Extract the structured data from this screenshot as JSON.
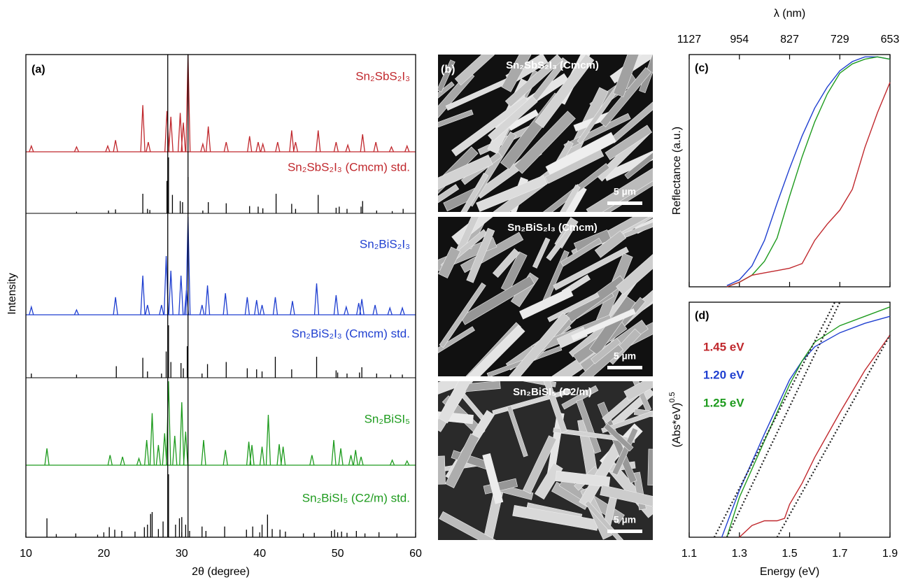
{
  "chart_data": [
    {
      "type": "xrd",
      "panel_label": "(a)",
      "xlabel": "2θ (degree)",
      "ylabel": "Intensity",
      "xlim": [
        10,
        60
      ],
      "xticks": [
        10,
        20,
        30,
        40,
        50,
        60
      ],
      "ylim": [
        0,
        100
      ],
      "reference_lines": [
        28.2,
        30.8
      ],
      "series": [
        {
          "name": "Sn₂SbS₂I₃",
          "kind": "measured",
          "color": "#c0282d",
          "x": [
            10.7,
            16.5,
            20.5,
            21.5,
            25.0,
            25.7,
            28.1,
            28.6,
            29.8,
            30.2,
            30.8,
            32.7,
            33.4,
            35.7,
            38.7,
            39.8,
            40.4,
            42.3,
            44.1,
            44.6,
            47.5,
            49.8,
            51.3,
            53.2,
            54.9,
            56.9,
            58.9
          ],
          "values": [
            6,
            5,
            6,
            12,
            48,
            10,
            42,
            36,
            40,
            30,
            100,
            8,
            26,
            10,
            16,
            10,
            8,
            10,
            22,
            10,
            22,
            10,
            7,
            18,
            10,
            5,
            6
          ]
        },
        {
          "name": "Sn₂SbS₂I₃ (Cmcm) std.",
          "kind": "std",
          "color": "#c0282d",
          "x": [
            16.5,
            20.6,
            21.5,
            25.0,
            25.6,
            25.9,
            28.1,
            28.3,
            28.8,
            29.8,
            30.1,
            30.8,
            32.7,
            33.4,
            35.7,
            38.7,
            39.8,
            40.4,
            42.1,
            44.1,
            44.6,
            47.5,
            49.8,
            50.2,
            51.2,
            53.0,
            53.2,
            55.0,
            57.0,
            58.4
          ],
          "values": [
            3,
            5,
            7,
            35,
            8,
            6,
            58,
            100,
            33,
            22,
            20,
            65,
            5,
            20,
            18,
            13,
            12,
            9,
            35,
            17,
            8,
            33,
            10,
            12,
            8,
            12,
            22,
            5,
            4,
            8
          ]
        },
        {
          "name": "Sn₂BiS₂I₃",
          "kind": "measured",
          "color": "#1f3fd0",
          "x": [
            10.7,
            16.5,
            21.5,
            25.0,
            25.6,
            27.4,
            28.0,
            28.6,
            29.9,
            30.6,
            30.8,
            32.6,
            33.3,
            35.6,
            38.4,
            39.6,
            40.3,
            42.0,
            44.2,
            47.3,
            49.8,
            51.1,
            52.7,
            53.1,
            54.8,
            56.7,
            58.3
          ],
          "values": [
            8,
            5,
            18,
            40,
            10,
            10,
            60,
            45,
            40,
            25,
            100,
            10,
            30,
            22,
            18,
            15,
            10,
            18,
            14,
            32,
            20,
            8,
            12,
            16,
            10,
            7,
            7
          ]
        },
        {
          "name": "Sn₂BiS₂I₃ (Cmcm) std.",
          "kind": "std",
          "color": "#1f3fd0",
          "x": [
            10.7,
            16.5,
            21.6,
            25.0,
            25.6,
            27.4,
            28.0,
            28.3,
            28.6,
            29.9,
            30.2,
            30.7,
            32.6,
            33.3,
            35.7,
            38.4,
            39.6,
            40.3,
            42.0,
            44.1,
            47.3,
            49.8,
            50.0,
            51.2,
            52.8,
            53.1,
            55.0,
            56.8,
            58.3
          ],
          "values": [
            8,
            6,
            22,
            38,
            12,
            8,
            50,
            100,
            30,
            28,
            18,
            60,
            8,
            26,
            30,
            18,
            16,
            12,
            40,
            16,
            40,
            14,
            10,
            8,
            10,
            20,
            8,
            6,
            6
          ]
        },
        {
          "name": "Sn₂BiSI₅",
          "kind": "measured",
          "color": "#1e9b1e",
          "x": [
            12.7,
            20.8,
            22.4,
            24.5,
            25.5,
            26.2,
            27.0,
            27.8,
            28.3,
            29.1,
            30.0,
            30.5,
            32.8,
            35.6,
            38.6,
            39.0,
            40.3,
            41.1,
            42.5,
            43.0,
            46.7,
            49.5,
            50.4,
            51.7,
            52.3,
            53.0,
            57.0,
            58.9
          ],
          "values": [
            20,
            12,
            10,
            8,
            30,
            62,
            24,
            38,
            100,
            35,
            75,
            40,
            30,
            18,
            28,
            24,
            22,
            60,
            25,
            22,
            12,
            30,
            20,
            12,
            18,
            10,
            6,
            5
          ]
        },
        {
          "name": "Sn₂BiSI₅ (C2/m) std.",
          "kind": "std",
          "color": "#1e9b1e",
          "x": [
            12.7,
            13.9,
            16.4,
            19.2,
            20.7,
            21.4,
            22.3,
            24.0,
            25.2,
            25.6,
            26.0,
            26.2,
            27.0,
            27.6,
            28.3,
            29.2,
            29.7,
            30.0,
            30.5,
            31.0,
            32.6,
            33.1,
            35.5,
            38.3,
            39.1,
            40.3,
            41.0,
            41.6,
            42.6,
            43.3,
            45.6,
            47.0,
            49.2,
            49.6,
            50.5,
            51.2,
            52.4,
            53.5,
            55.3,
            57.6
          ],
          "values": [
            30,
            5,
            6,
            4,
            16,
            12,
            10,
            9,
            16,
            20,
            37,
            40,
            13,
            25,
            100,
            20,
            30,
            32,
            20,
            10,
            17,
            10,
            17,
            12,
            17,
            20,
            36,
            13,
            12,
            9,
            6,
            7,
            10,
            12,
            9,
            7,
            10,
            6,
            8,
            6
          ]
        }
      ]
    },
    {
      "type": "line",
      "panel_label": "(c)",
      "ylabel": "Reflectance (a.u.)",
      "x2label": "λ (nm)",
      "xlim": [
        1.1,
        1.9
      ],
      "xticks": [
        1.1,
        1.3,
        1.5,
        1.7,
        1.9
      ],
      "x2ticks": [
        {
          "value": 1.1,
          "label": "1127"
        },
        {
          "value": 1.3,
          "label": "954"
        },
        {
          "value": 1.5,
          "label": "827"
        },
        {
          "value": 1.7,
          "label": "729"
        },
        {
          "value": 1.9,
          "label": "653"
        }
      ],
      "ylim": [
        0,
        100
      ],
      "series": [
        {
          "color": "#1f3fd0",
          "x": [
            1.25,
            1.3,
            1.35,
            1.4,
            1.45,
            1.5,
            1.55,
            1.6,
            1.65,
            1.7,
            1.75,
            1.8,
            1.85,
            1.9
          ],
          "values": [
            0.5,
            3,
            9,
            20,
            36,
            51,
            65,
            77,
            86,
            93,
            97,
            99,
            99,
            98
          ]
        },
        {
          "color": "#1e9b1e",
          "x": [
            1.25,
            1.3,
            1.35,
            1.4,
            1.45,
            1.5,
            1.55,
            1.6,
            1.65,
            1.7,
            1.75,
            1.8,
            1.85,
            1.9
          ],
          "values": [
            0,
            2,
            5,
            11,
            21,
            39,
            56,
            71,
            83,
            92,
            96,
            98,
            99,
            98
          ]
        },
        {
          "color": "#c0282d",
          "x": [
            1.25,
            1.3,
            1.35,
            1.4,
            1.45,
            1.5,
            1.55,
            1.6,
            1.65,
            1.7,
            1.75,
            1.8,
            1.85,
            1.9
          ],
          "values": [
            0,
            2,
            5,
            6,
            7,
            8,
            10,
            20,
            27,
            33,
            42,
            60,
            75,
            88
          ]
        }
      ]
    },
    {
      "type": "line",
      "panel_label": "(d)",
      "xlabel": "Energy (eV)",
      "ylabel": "(Abs*eV)",
      "ylabel_superscript": "0.5",
      "xlim": [
        1.1,
        1.9
      ],
      "xticks": [
        1.1,
        1.3,
        1.5,
        1.7,
        1.9
      ],
      "ylim": [
        0,
        100
      ],
      "series": [
        {
          "color": "#1f3fd0",
          "x": [
            1.23,
            1.3,
            1.4,
            1.5,
            1.55,
            1.6,
            1.7,
            1.8,
            1.9
          ],
          "values": [
            0,
            20,
            44,
            67,
            75,
            81,
            87,
            91,
            94
          ]
        },
        {
          "color": "#1e9b1e",
          "x": [
            1.25,
            1.3,
            1.4,
            1.5,
            1.55,
            1.6,
            1.7,
            1.8,
            1.9
          ],
          "values": [
            0,
            17,
            41,
            65,
            75,
            83,
            90,
            94,
            98
          ]
        },
        {
          "color": "#c0282d",
          "x": [
            1.3,
            1.35,
            1.4,
            1.45,
            1.48,
            1.5,
            1.55,
            1.6,
            1.7,
            1.8,
            1.9
          ],
          "values": [
            0,
            5,
            7,
            7,
            8,
            14,
            23,
            34,
            53,
            71,
            86
          ]
        },
        {
          "color": "#222222",
          "style": "dotted",
          "x": [
            1.2,
            1.68
          ],
          "values": [
            0,
            100
          ]
        },
        {
          "color": "#222222",
          "style": "dotted",
          "x": [
            1.25,
            1.7
          ],
          "values": [
            0,
            100
          ]
        },
        {
          "color": "#222222",
          "style": "dotted",
          "x": [
            1.45,
            1.9
          ],
          "values": [
            0,
            86
          ]
        }
      ],
      "annotations": [
        {
          "text": "1.45 eV",
          "color": "#c0282d"
        },
        {
          "text": "1.20 eV",
          "color": "#1f3fd0"
        },
        {
          "text": "1.25 eV",
          "color": "#1e9b1e"
        }
      ]
    }
  ],
  "panel_b": {
    "label": "(b)",
    "images": [
      {
        "title": "Sn₂SbS₂I₃ (Cmcm)",
        "scale": "5 µm"
      },
      {
        "title": "Sn₂BiS₂I₃ (Cmcm)",
        "scale": "5 µm"
      },
      {
        "title": "Sn₂BiSI₅ (C2/m)",
        "scale": "5 µm"
      }
    ]
  }
}
